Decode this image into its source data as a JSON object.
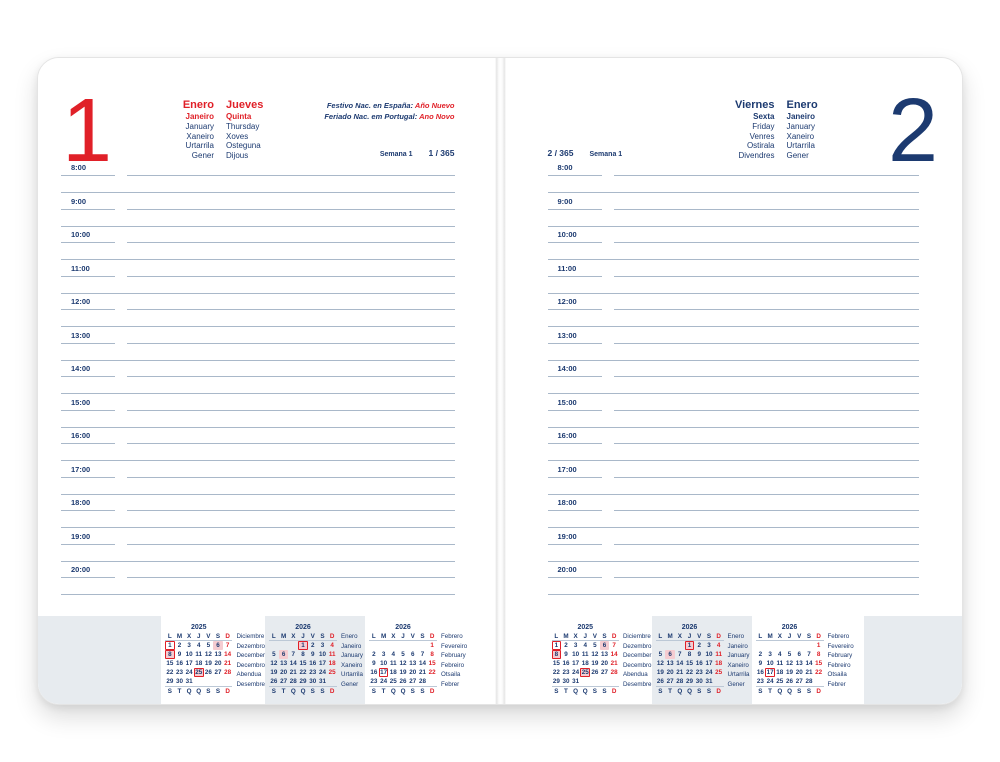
{
  "colors": {
    "navy": "#1c3a70",
    "red": "#e02028",
    "pink_holiday_fill": "#f5ccd1",
    "grid_line": "#a9b8c9",
    "shade_gray": "#e7ebef"
  },
  "pages": [
    {
      "side": "left",
      "accent": "red",
      "day_number": "1",
      "month_names": [
        "Enero",
        "Janeiro",
        "January",
        "Xaneiro",
        "Urtarrila",
        "Gener"
      ],
      "day_names": [
        "Jueves",
        "Quinta",
        "Thursday",
        "Xoves",
        "Osteguna",
        "Dijous"
      ],
      "holidays": [
        {
          "label": "Festivo Nac. en España:",
          "name": "Año Nuevo"
        },
        {
          "label": "Feriado Nac. em Portugal:",
          "name": "Ano Novo"
        }
      ],
      "week_label": "Semana 1",
      "day_of_year": "1 / 365"
    },
    {
      "side": "right",
      "accent": "navy",
      "day_number": "2",
      "month_names": [
        "Enero",
        "Janeiro",
        "January",
        "Xaneiro",
        "Urtarrila",
        "Gener"
      ],
      "day_names": [
        "Viernes",
        "Sexta",
        "Friday",
        "Venres",
        "Ostirala",
        "Divendres"
      ],
      "holidays": [],
      "week_label": "Semana 1",
      "day_of_year": "2 / 365"
    }
  ],
  "times": [
    "8:00",
    "9:00",
    "10:00",
    "11:00",
    "12:00",
    "13:00",
    "14:00",
    "15:00",
    "16:00",
    "17:00",
    "18:00",
    "19:00",
    "20:00"
  ],
  "mini_calendars": [
    {
      "year": "2025",
      "highlight": false,
      "weekdays_top": [
        "L",
        "M",
        "X",
        "J",
        "V",
        "S",
        "D"
      ],
      "weekdays_bottom": [
        "S",
        "T",
        "Q",
        "Q",
        "S",
        "S",
        "D"
      ],
      "weeks": [
        [
          "1!",
          "2",
          "3",
          "4",
          "5",
          "6+",
          "7"
        ],
        [
          "8#",
          "9",
          "10",
          "11",
          "12",
          "13",
          "14"
        ],
        [
          "15",
          "16",
          "17",
          "18",
          "19",
          "20",
          "21"
        ],
        [
          "22",
          "23",
          "24",
          "25#",
          "26",
          "27",
          "28"
        ],
        [
          "29",
          "30",
          "31",
          "",
          "",
          "",
          ""
        ]
      ],
      "month_labels": [
        "Diciembre",
        "Dezembro",
        "December",
        "Decembro",
        "Abendua",
        "Desembre"
      ]
    },
    {
      "year": "2026",
      "highlight": true,
      "weekdays_top": [
        "L",
        "M",
        "X",
        "J",
        "V",
        "S",
        "D"
      ],
      "weekdays_bottom": [
        "S",
        "T",
        "Q",
        "Q",
        "S",
        "S",
        "D"
      ],
      "weeks": [
        [
          "",
          "",
          "",
          "1#",
          "2",
          "3",
          "4"
        ],
        [
          "5",
          "6+",
          "7",
          "8",
          "9",
          "10",
          "11"
        ],
        [
          "12",
          "13",
          "14",
          "15",
          "16",
          "17",
          "18"
        ],
        [
          "19",
          "20",
          "21",
          "22",
          "23",
          "24",
          "25"
        ],
        [
          "26",
          "27",
          "28",
          "29",
          "30",
          "31",
          ""
        ]
      ],
      "month_labels": [
        "Enero",
        "Janeiro",
        "January",
        "Xaneiro",
        "Urtarrila",
        "Gener"
      ]
    },
    {
      "year": "2026",
      "highlight": false,
      "weekdays_top": [
        "L",
        "M",
        "X",
        "J",
        "V",
        "S",
        "D"
      ],
      "weekdays_bottom": [
        "S",
        "T",
        "Q",
        "Q",
        "S",
        "S",
        "D"
      ],
      "weeks": [
        [
          "",
          "",
          "",
          "",
          "",
          "",
          "1"
        ],
        [
          "2",
          "3",
          "4",
          "5",
          "6",
          "7",
          "8"
        ],
        [
          "9",
          "10",
          "11",
          "12",
          "13",
          "14",
          "15"
        ],
        [
          "16",
          "17!",
          "18",
          "19",
          "20",
          "21",
          "22"
        ],
        [
          "23",
          "24",
          "25",
          "26",
          "27",
          "28",
          ""
        ]
      ],
      "month_labels": [
        "Febrero",
        "Fevereiro",
        "February",
        "Febreiro",
        "Otsaila",
        "Febrer"
      ]
    }
  ]
}
